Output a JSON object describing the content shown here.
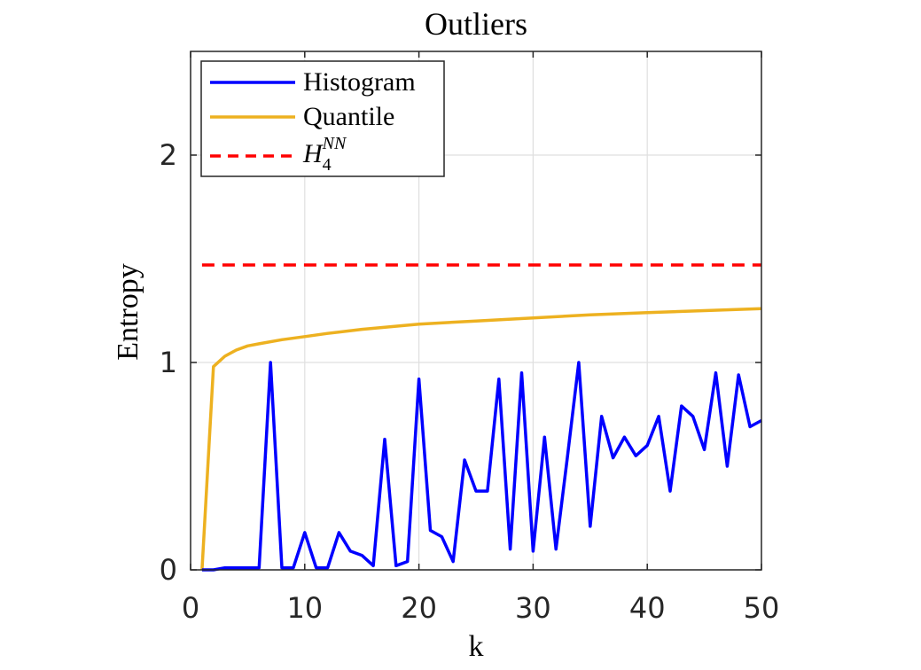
{
  "chart_data": {
    "type": "line",
    "title": "Outliers",
    "xlabel": "k",
    "ylabel": "Entropy",
    "xlim": [
      0,
      50
    ],
    "ylim": [
      0,
      2.5
    ],
    "xticks": [
      0,
      10,
      20,
      30,
      40,
      50
    ],
    "yticks": [
      0,
      1,
      2
    ],
    "xtick_labels": [
      "0",
      "10",
      "20",
      "30",
      "40",
      "50"
    ],
    "ytick_labels": [
      "0",
      "1",
      "2"
    ],
    "grid": true,
    "legend_position": "top-left",
    "series": [
      {
        "name": "Histogram",
        "color": "#0000ff",
        "style": "solid",
        "x": [
          1,
          2,
          3,
          4,
          5,
          6,
          7,
          8,
          9,
          10,
          11,
          12,
          13,
          14,
          15,
          16,
          17,
          18,
          19,
          20,
          21,
          22,
          23,
          24,
          25,
          26,
          27,
          28,
          29,
          30,
          31,
          32,
          33,
          34,
          35,
          36,
          37,
          38,
          39,
          40,
          41,
          42,
          43,
          44,
          45,
          46,
          47,
          48,
          49,
          50
        ],
        "y": [
          0,
          0,
          0.01,
          0.01,
          0.01,
          0.01,
          1.0,
          0.01,
          0.01,
          0.18,
          0.01,
          0.01,
          0.18,
          0.09,
          0.07,
          0.02,
          0.63,
          0.02,
          0.04,
          0.92,
          0.19,
          0.16,
          0.04,
          0.53,
          0.38,
          0.38,
          0.92,
          0.1,
          0.95,
          0.09,
          0.64,
          0.1,
          0.54,
          1.0,
          0.21,
          0.74,
          0.54,
          0.64,
          0.55,
          0.6,
          0.74,
          0.38,
          0.79,
          0.74,
          0.58,
          0.95,
          0.5,
          0.94,
          0.69,
          0.72
        ]
      },
      {
        "name": "Quantile",
        "color": "#edb120",
        "style": "solid",
        "x": [
          1,
          2,
          3,
          4,
          5,
          6,
          8,
          10,
          12,
          15,
          20,
          25,
          30,
          35,
          40,
          45,
          50
        ],
        "y": [
          0,
          0.98,
          1.03,
          1.06,
          1.08,
          1.09,
          1.11,
          1.125,
          1.14,
          1.16,
          1.185,
          1.2,
          1.215,
          1.23,
          1.24,
          1.25,
          1.26
        ]
      },
      {
        "name": "H_4^NN",
        "color": "#ff0000",
        "style": "dashed",
        "x": [
          1,
          50
        ],
        "y": [
          1.47,
          1.47
        ]
      }
    ],
    "legend": {
      "entries": [
        {
          "label": "Histogram",
          "color": "#0000ff",
          "style": "solid"
        },
        {
          "label": "Quantile",
          "color": "#edb120",
          "style": "solid"
        },
        {
          "base": "H",
          "sub": "4",
          "sup": "NN",
          "color": "#ff0000",
          "style": "dashed"
        }
      ]
    }
  }
}
